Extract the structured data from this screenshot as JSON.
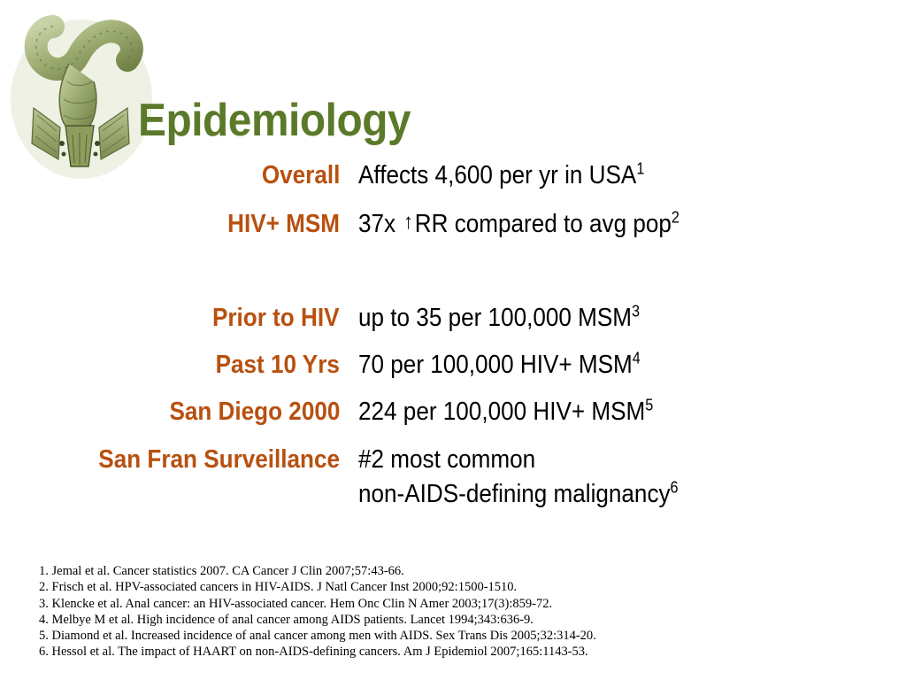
{
  "slide": {
    "title": "Epidemiology",
    "illustration_icon": "anatomical-colon-rectum-illustration",
    "colors": {
      "title": "#5a7a2a",
      "label": "#b8500f",
      "text": "#000000"
    },
    "rows": [
      {
        "label": "Overall",
        "text": "Affects 4,600 per yr in USA",
        "sup": "1"
      },
      {
        "label": "HIV+ MSM",
        "text_before": "37x ",
        "arrow_icon": "up-arrow-icon",
        "text_after": "RR compared to avg pop",
        "sup": "2"
      },
      {
        "label": "Prior to HIV",
        "text": "up to 35 per 100,000 MSM",
        "sup": "3"
      },
      {
        "label": "Past 10 Yrs",
        "text": "70 per 100,000 HIV+ MSM",
        "sup": "4"
      },
      {
        "label": "San Diego 2000",
        "text": "224 per 100,000 HIV+ MSM",
        "sup": "5"
      },
      {
        "label": "San Fran Surveillance",
        "text": "#2 most common",
        "text_line2": "non-AIDS-defining malignancy",
        "sup": "6"
      }
    ],
    "references": [
      "1. Jemal et al. Cancer statistics 2007.  CA Cancer J Clin 2007;57:43-66.",
      "2. Frisch et al. HPV-associated cancers in HIV-AIDS. J Natl Cancer Inst 2000;92:1500-1510.",
      "3. Klencke et al. Anal cancer: an HIV-associated cancer. Hem Onc Clin N Amer 2003;17(3):859-72.",
      "4. Melbye M et al. High incidence of anal cancer among AIDS patients. Lancet 1994;343:636-9.",
      "5. Diamond et al. Increased incidence of anal cancer among men with AIDS. Sex Trans Dis 2005;32:314-20.",
      "6. Hessol et al. The impact of HAART on non-AIDS-defining cancers. Am J Epidemiol 2007;165:1143-53."
    ]
  }
}
